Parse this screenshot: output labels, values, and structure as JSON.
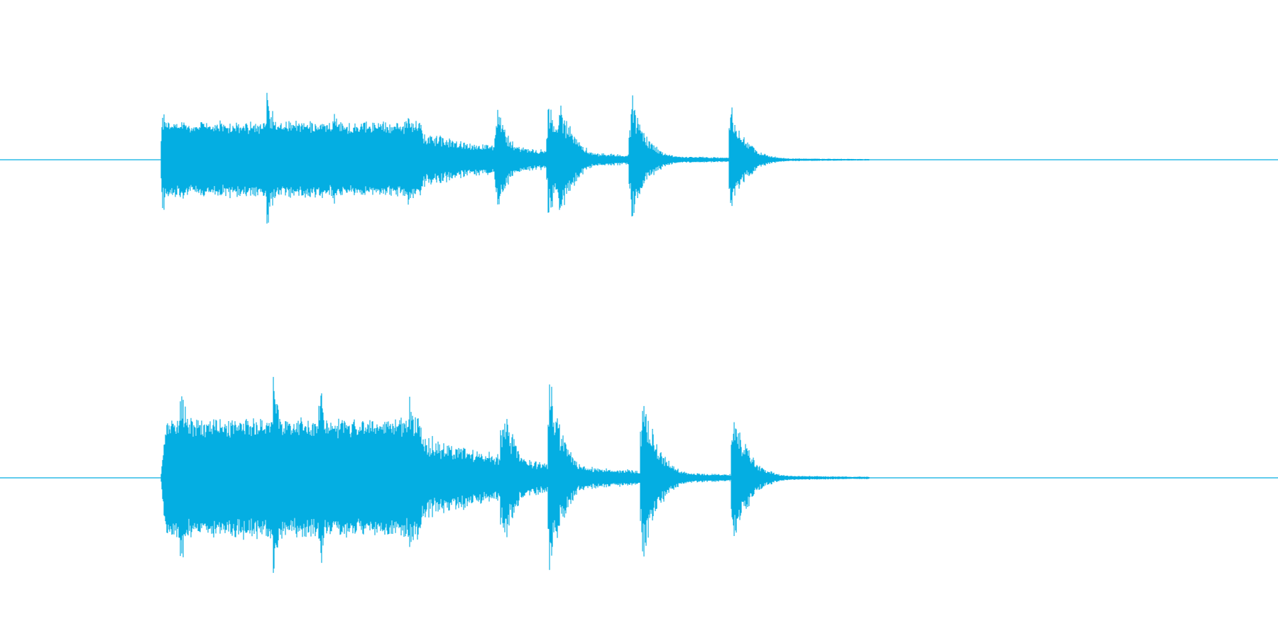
{
  "waveform": {
    "color": "#04aee2",
    "background": "#ffffff",
    "duration_fraction_visible": 1.0,
    "channels": [
      {
        "name": "",
        "peaks": [
          {
            "t": 0.1265,
            "amp": 0.82
          },
          {
            "t": 0.2087,
            "amp": 1.0
          },
          {
            "t": 0.2357,
            "amp": 0.78
          },
          {
            "t": 0.2603,
            "amp": 0.92
          },
          {
            "t": 0.3179,
            "amp": 0.8
          },
          {
            "t": 0.3883,
            "amp": 0.78
          },
          {
            "t": 0.4288,
            "amp": 0.9
          },
          {
            "t": 0.4377,
            "amp": 1.0
          },
          {
            "t": 0.4937,
            "amp": 1.0
          },
          {
            "t": 0.5715,
            "amp": 0.87
          }
        ],
        "onset": 0.126,
        "tail_end": 0.68
      },
      {
        "name": "",
        "peaks": [
          {
            "t": 0.1297,
            "amp": 0.62
          },
          {
            "t": 0.1407,
            "amp": 1.0
          },
          {
            "t": 0.2137,
            "amp": 1.0
          },
          {
            "t": 0.2493,
            "amp": 1.0
          },
          {
            "t": 0.3203,
            "amp": 0.81
          },
          {
            "t": 0.393,
            "amp": 0.79
          },
          {
            "t": 0.43,
            "amp": 0.96
          },
          {
            "t": 0.5023,
            "amp": 0.92
          },
          {
            "t": 0.5737,
            "amp": 0.72
          }
        ],
        "onset": 0.126,
        "tail_end": 0.68
      }
    ]
  }
}
